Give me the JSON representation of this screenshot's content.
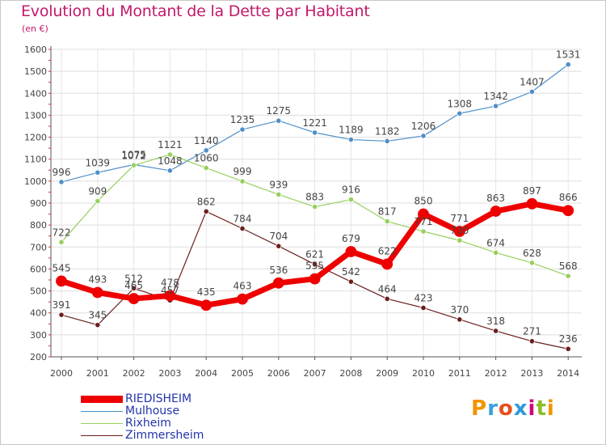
{
  "title": "Evolution du Montant de la Dette par Habitant",
  "unit": "(en €)",
  "logo": {
    "text": "Proxiti",
    "letters": [
      {
        "ch": "P",
        "color": "#f29400"
      },
      {
        "ch": "r",
        "color": "#3aa0e0"
      },
      {
        "ch": "o",
        "color": "#e94e1b"
      },
      {
        "ch": "x",
        "color": "#2b9bd8"
      },
      {
        "ch": "i",
        "color": "#d1007f"
      },
      {
        "ch": "t",
        "color": "#8cbd2a"
      },
      {
        "ch": "i",
        "color": "#f29400"
      }
    ]
  },
  "legend": [
    {
      "label": "RIEDISHEIM",
      "color": "#ee0000"
    },
    {
      "label": "Mulhouse",
      "color": "#4f8fc8"
    },
    {
      "label": "Rixheim",
      "color": "#96d05c"
    },
    {
      "label": "Zimmersheim",
      "color": "#6b1e1e"
    }
  ],
  "chart_data": {
    "type": "line",
    "title": "Evolution du Montant de la Dette par Habitant",
    "ylabel": "(en €)",
    "xlabel": "",
    "x": [
      "2000",
      "2001",
      "2002",
      "2003",
      "2004",
      "2005",
      "2006",
      "2007",
      "2008",
      "2009",
      "2010",
      "2011",
      "2012",
      "2013",
      "2014"
    ],
    "ylim": [
      200,
      1600
    ],
    "yticks": [
      200,
      300,
      400,
      500,
      600,
      700,
      800,
      900,
      1000,
      1100,
      1200,
      1300,
      1400,
      1500,
      1600
    ],
    "grid": true,
    "legend_position": "bottom-left",
    "series": [
      {
        "name": "Mulhouse",
        "color": "#4f8fc8",
        "values": [
          996,
          1039,
          1075,
          1048,
          1140,
          1235,
          1275,
          1221,
          1189,
          1182,
          1206,
          1308,
          1342,
          1407,
          1531
        ]
      },
      {
        "name": "Rixheim",
        "color": "#96d05c",
        "values": [
          722,
          909,
          1072,
          1121,
          1060,
          999,
          939,
          883,
          916,
          817,
          771,
          730,
          674,
          628,
          568
        ]
      },
      {
        "name": "Zimmersheim",
        "color": "#6b1e1e",
        "values": [
          391,
          345,
          512,
          457,
          862,
          784,
          704,
          621,
          542,
          464,
          423,
          370,
          318,
          271,
          236
        ]
      },
      {
        "name": "RIEDISHEIM",
        "color": "#ee0000",
        "values": [
          545,
          493,
          465,
          478,
          435,
          463,
          536,
          555,
          679,
          622,
          850,
          771,
          863,
          897,
          866
        ]
      }
    ]
  }
}
